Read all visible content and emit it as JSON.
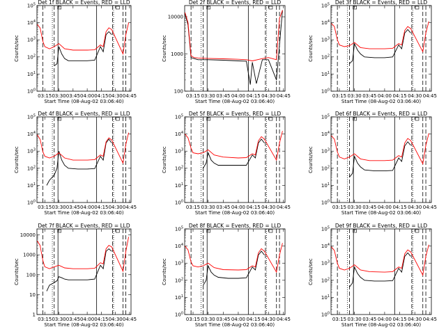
{
  "figure": {
    "date_label": "Start Time (08-Aug-02 03:06:40)",
    "ylabel": "Counts/sec",
    "x_ticks": [
      "03:15",
      "03:30",
      "03:45",
      "04:00",
      "04:15",
      "04:30",
      "04:45"
    ],
    "colors": {
      "events": "#000000",
      "lld": "#ff0000",
      "axes": "#000000"
    }
  },
  "chart_data": [
    {
      "type": "line",
      "title": "Det 1f  BLACK = Events, RED = LLD",
      "xlabel": "Start Time (08-Aug-02 03:06:40)",
      "ylabel": "Counts/sec",
      "y_scale": "log",
      "ylim": [
        1,
        100000
      ],
      "y_ticks": [
        "10^0",
        "10^1",
        "10^2",
        "10^3",
        "10^4",
        "10^5"
      ],
      "x_ticks": [
        "03:15",
        "03:30",
        "03:45",
        "04:00",
        "04:15",
        "04:30",
        "04:45"
      ],
      "series": [
        {
          "name": "Events",
          "color": "#000000",
          "x": [
            "03:25",
            "03:28",
            "03:30",
            "03:33",
            "03:36",
            "03:40",
            "03:50",
            "04:00",
            "04:08",
            "04:14",
            "04:17",
            "04:20",
            "04:23",
            "04:26"
          ],
          "y": [
            30,
            40,
            400,
            150,
            80,
            60,
            60,
            60,
            65,
            400,
            200,
            2000,
            3000,
            2000
          ]
        },
        {
          "name": "LLD",
          "color": "#ff0000",
          "x": [
            "03:07",
            "03:10",
            "03:13",
            "03:15",
            "03:20",
            "03:25",
            "03:30",
            "03:36",
            "03:45",
            "04:00",
            "04:08",
            "04:14",
            "04:17",
            "04:20",
            "04:23",
            "04:26",
            "04:38",
            "04:41",
            "04:44"
          ],
          "y": [
            8000,
            5000,
            800,
            400,
            300,
            400,
            600,
            300,
            250,
            250,
            260,
            500,
            400,
            3000,
            5000,
            4000,
            150,
            2000,
            10000
          ]
        }
      ]
    },
    {
      "type": "line",
      "title": "Det 2f  BLACK = Events, RED = LLD",
      "xlabel": "Start Time (08-Aug-02 03:06:40)",
      "ylabel": "Counts/sec",
      "y_scale": "log",
      "ylim": [
        100,
        20000
      ],
      "y_ticks": [
        "100",
        "1000",
        "10000"
      ],
      "x_ticks": [
        "03:15",
        "03:30",
        "03:45",
        "04:00",
        "04:15",
        "04:30",
        "04:45"
      ],
      "series": [
        {
          "name": "Events",
          "color": "#000000",
          "x": [
            "03:07",
            "03:10",
            "03:13",
            "03:16",
            "03:20",
            "03:30",
            "03:45",
            "04:00",
            "04:08",
            "04:12",
            "04:14",
            "04:18",
            "04:24",
            "04:30",
            "04:38",
            "04:44"
          ],
          "y": [
            12000,
            6000,
            800,
            750,
            700,
            700,
            680,
            650,
            640,
            150,
            600,
            160,
            700,
            700,
            200,
            15000
          ]
        },
        {
          "name": "LLD",
          "color": "#ff0000",
          "x": [
            "03:07",
            "03:10",
            "03:13",
            "03:16",
            "03:20",
            "03:30",
            "03:45",
            "04:00",
            "04:08",
            "04:14",
            "04:24",
            "04:30",
            "04:38",
            "04:41",
            "04:44"
          ],
          "y": [
            13000,
            7000,
            900,
            800,
            780,
            760,
            740,
            720,
            700,
            650,
            750,
            800,
            700,
            9000,
            15000
          ]
        }
      ]
    },
    {
      "type": "line",
      "title": "Det 3f  BLACK = Events, RED = LLD",
      "xlabel": "Start Time (08-Aug-02 03:06:40)",
      "ylabel": "Counts/sec",
      "y_scale": "log",
      "ylim": [
        1,
        100000
      ],
      "y_ticks": [
        "10^0",
        "10^1",
        "10^2",
        "10^3",
        "10^4",
        "10^5"
      ],
      "x_ticks": [
        "03:15",
        "03:30",
        "03:45",
        "04:00",
        "04:15",
        "04:30",
        "04:45"
      ],
      "series": [
        {
          "name": "Events",
          "color": "#000000",
          "x": [
            "03:25",
            "03:28",
            "03:30",
            "03:33",
            "03:36",
            "03:40",
            "03:50",
            "04:00",
            "04:08",
            "04:14",
            "04:17",
            "04:20",
            "04:23",
            "04:26"
          ],
          "y": [
            40,
            60,
            600,
            250,
            150,
            100,
            90,
            90,
            100,
            500,
            300,
            2500,
            4000,
            2500
          ]
        },
        {
          "name": "LLD",
          "color": "#ff0000",
          "x": [
            "03:07",
            "03:10",
            "03:13",
            "03:15",
            "03:20",
            "03:25",
            "03:30",
            "03:36",
            "03:45",
            "04:00",
            "04:08",
            "04:14",
            "04:17",
            "04:20",
            "04:23",
            "04:26",
            "04:38",
            "04:41",
            "04:44"
          ],
          "y": [
            9000,
            6000,
            1000,
            500,
            400,
            450,
            700,
            350,
            300,
            300,
            320,
            600,
            500,
            3500,
            6000,
            4500,
            200,
            2500,
            12000
          ]
        }
      ]
    },
    {
      "type": "line",
      "title": "Det 4f  BLACK = Events, RED = LLD",
      "xlabel": "Start Time (08-Aug-02 03:06:40)",
      "ylabel": "Counts/sec",
      "y_scale": "log",
      "ylim": [
        1,
        100000
      ],
      "y_ticks": [
        "10^0",
        "10^1",
        "10^2",
        "10^3",
        "10^4",
        "10^5"
      ],
      "x_ticks": [
        "03:15",
        "03:30",
        "03:45",
        "04:00",
        "04:15",
        "04:30",
        "04:45"
      ],
      "series": [
        {
          "name": "Events",
          "color": "#000000",
          "x": [
            "03:17",
            "03:20",
            "03:25",
            "03:28",
            "03:30",
            "03:33",
            "03:36",
            "03:40",
            "03:50",
            "04:00",
            "04:08",
            "04:14",
            "04:17",
            "04:20",
            "04:23",
            "04:26"
          ],
          "y": [
            10,
            20,
            40,
            100,
            1000,
            300,
            150,
            100,
            90,
            90,
            95,
            500,
            300,
            3000,
            5000,
            3000
          ]
        },
        {
          "name": "LLD",
          "color": "#ff0000",
          "x": [
            "03:07",
            "03:10",
            "03:13",
            "03:15",
            "03:20",
            "03:25",
            "03:30",
            "03:36",
            "03:45",
            "04:00",
            "04:08",
            "04:14",
            "04:17",
            "04:20",
            "04:23",
            "04:26",
            "04:38",
            "04:41",
            "04:44"
          ],
          "y": [
            9000,
            5000,
            900,
            500,
            400,
            500,
            800,
            400,
            300,
            300,
            320,
            600,
            500,
            3500,
            6000,
            4500,
            200,
            2500,
            12000
          ]
        }
      ]
    },
    {
      "type": "line",
      "title": "Det 5f  BLACK = Events, RED = LLD",
      "xlabel": "Start Time (08-Aug-02 03:06:40)",
      "ylabel": "Counts/sec",
      "y_scale": "log",
      "ylim": [
        1,
        100000
      ],
      "y_ticks": [
        "10^0",
        "10^1",
        "10^2",
        "10^3",
        "10^4",
        "10^5"
      ],
      "x_ticks": [
        "03:15",
        "03:30",
        "03:45",
        "04:00",
        "04:15",
        "04:30",
        "04:45"
      ],
      "series": [
        {
          "name": "Events",
          "color": "#000000",
          "x": [
            "03:25",
            "03:28",
            "03:30",
            "03:33",
            "03:36",
            "03:40",
            "03:50",
            "04:00",
            "04:08",
            "04:14",
            "04:17",
            "04:20",
            "04:23",
            "04:26"
          ],
          "y": [
            100,
            200,
            800,
            300,
            200,
            150,
            150,
            150,
            150,
            600,
            400,
            3000,
            5000,
            3000
          ]
        },
        {
          "name": "LLD",
          "color": "#ff0000",
          "x": [
            "03:07",
            "03:10",
            "03:13",
            "03:15",
            "03:20",
            "03:25",
            "03:30",
            "03:36",
            "03:45",
            "04:00",
            "04:08",
            "04:14",
            "04:17",
            "04:20",
            "04:23",
            "04:26",
            "04:38",
            "04:41",
            "04:44"
          ],
          "y": [
            10000,
            6000,
            1500,
            800,
            700,
            800,
            1200,
            600,
            450,
            400,
            420,
            700,
            600,
            4000,
            7000,
            5000,
            300,
            3000,
            15000
          ]
        }
      ]
    },
    {
      "type": "line",
      "title": "Det 6f  BLACK = Events, RED = LLD",
      "xlabel": "Start Time (08-Aug-02 03:06:40)",
      "ylabel": "Counts/sec",
      "y_scale": "log",
      "ylim": [
        1,
        100000
      ],
      "y_ticks": [
        "10^0",
        "10^1",
        "10^2",
        "10^3",
        "10^4",
        "10^5"
      ],
      "x_ticks": [
        "03:15",
        "03:30",
        "03:45",
        "04:00",
        "04:15",
        "04:30",
        "04:45"
      ],
      "series": [
        {
          "name": "Events",
          "color": "#000000",
          "x": [
            "03:25",
            "03:28",
            "03:30",
            "03:33",
            "03:36",
            "03:40",
            "03:50",
            "04:00",
            "04:08",
            "04:14",
            "04:17",
            "04:20",
            "04:23",
            "04:26"
          ],
          "y": [
            30,
            50,
            500,
            200,
            120,
            80,
            70,
            70,
            75,
            400,
            250,
            2000,
            3500,
            2200
          ]
        },
        {
          "name": "LLD",
          "color": "#ff0000",
          "x": [
            "03:07",
            "03:10",
            "03:13",
            "03:15",
            "03:20",
            "03:25",
            "03:30",
            "03:36",
            "03:45",
            "04:00",
            "04:08",
            "04:14",
            "04:17",
            "04:20",
            "04:23",
            "04:26",
            "04:38",
            "04:41",
            "04:44"
          ],
          "y": [
            8000,
            5000,
            900,
            450,
            350,
            450,
            700,
            350,
            280,
            280,
            300,
            550,
            450,
            3000,
            5500,
            4200,
            180,
            2200,
            11000
          ]
        }
      ]
    },
    {
      "type": "line",
      "title": "Det 7f  BLACK = Events, RED = LLD",
      "xlabel": "Start Time (08-Aug-02 03:06:40)",
      "ylabel": "Counts/sec",
      "y_scale": "log",
      "ylim": [
        1,
        20000
      ],
      "y_ticks": [
        "1",
        "10",
        "100",
        "1000",
        "10000"
      ],
      "x_ticks": [
        "03:15",
        "03:30",
        "03:45",
        "04:00",
        "04:15",
        "04:30",
        "04:45"
      ],
      "series": [
        {
          "name": "Events",
          "color": "#000000",
          "x": [
            "03:17",
            "03:20",
            "03:25",
            "03:28",
            "03:30",
            "03:33",
            "03:36",
            "03:40",
            "03:50",
            "04:00",
            "04:08",
            "04:14",
            "04:17",
            "04:20",
            "04:23",
            "04:26"
          ],
          "y": [
            15,
            30,
            40,
            50,
            80,
            70,
            60,
            55,
            55,
            55,
            60,
            300,
            200,
            1500,
            2000,
            1500
          ]
        },
        {
          "name": "LLD",
          "color": "#ff0000",
          "x": [
            "03:07",
            "03:10",
            "03:13",
            "03:15",
            "03:20",
            "03:25",
            "03:30",
            "03:36",
            "03:45",
            "04:00",
            "04:08",
            "04:14",
            "04:17",
            "04:20",
            "04:23",
            "04:26",
            "04:38",
            "04:41",
            "04:44"
          ],
          "y": [
            5000,
            3000,
            500,
            250,
            200,
            250,
            300,
            220,
            200,
            200,
            210,
            400,
            350,
            2000,
            3000,
            2500,
            150,
            1500,
            8000
          ]
        }
      ]
    },
    {
      "type": "line",
      "title": "Det 8f  BLACK = Events, RED = LLD",
      "xlabel": "Start Time (08-Aug-02 03:06:40)",
      "ylabel": "Counts/sec",
      "y_scale": "log",
      "ylim": [
        1,
        100000
      ],
      "y_ticks": [
        "10^0",
        "10^1",
        "10^2",
        "10^3",
        "10^4",
        "10^5"
      ],
      "x_ticks": [
        "03:15",
        "03:30",
        "03:45",
        "04:00",
        "04:15",
        "04:30",
        "04:45"
      ],
      "series": [
        {
          "name": "Events",
          "color": "#000000",
          "x": [
            "03:25",
            "03:28",
            "03:30",
            "03:33",
            "03:36",
            "03:40",
            "03:50",
            "04:00",
            "04:08",
            "04:14",
            "04:17",
            "04:20",
            "04:23",
            "04:26"
          ],
          "y": [
            50,
            100,
            700,
            300,
            200,
            150,
            130,
            130,
            140,
            600,
            400,
            3000,
            5000,
            3000
          ]
        },
        {
          "name": "LLD",
          "color": "#ff0000",
          "x": [
            "03:07",
            "03:10",
            "03:13",
            "03:15",
            "03:20",
            "03:25",
            "03:30",
            "03:36",
            "03:45",
            "04:00",
            "04:08",
            "04:14",
            "04:17",
            "04:20",
            "04:23",
            "04:26",
            "04:38",
            "04:41",
            "04:44"
          ],
          "y": [
            10000,
            6000,
            1200,
            700,
            600,
            700,
            1000,
            550,
            420,
            400,
            420,
            700,
            600,
            4000,
            7000,
            5000,
            300,
            3000,
            15000
          ]
        }
      ]
    },
    {
      "type": "line",
      "title": "Det 9f  BLACK = Events, RED = LLD",
      "xlabel": "Start Time (08-Aug-02 03:06:40)",
      "ylabel": "Counts/sec",
      "y_scale": "log",
      "ylim": [
        1,
        100000
      ],
      "y_ticks": [
        "10^0",
        "10^1",
        "10^2",
        "10^3",
        "10^4",
        "10^5"
      ],
      "x_ticks": [
        "03:15",
        "03:30",
        "03:45",
        "04:00",
        "04:15",
        "04:30",
        "04:45"
      ],
      "series": [
        {
          "name": "Events",
          "color": "#000000",
          "x": [
            "03:25",
            "03:28",
            "03:30",
            "03:33",
            "03:36",
            "03:40",
            "03:50",
            "04:00",
            "04:08",
            "04:14",
            "04:17",
            "04:20",
            "04:23",
            "04:26"
          ],
          "y": [
            40,
            70,
            600,
            250,
            150,
            100,
            90,
            90,
            95,
            500,
            300,
            2500,
            4000,
            2500
          ]
        },
        {
          "name": "LLD",
          "color": "#ff0000",
          "x": [
            "03:07",
            "03:10",
            "03:13",
            "03:15",
            "03:20",
            "03:25",
            "03:30",
            "03:36",
            "03:45",
            "04:00",
            "04:08",
            "04:14",
            "04:17",
            "04:20",
            "04:23",
            "04:26",
            "04:38",
            "04:41",
            "04:44"
          ],
          "y": [
            9000,
            5500,
            1000,
            500,
            400,
            500,
            800,
            400,
            320,
            300,
            320,
            600,
            500,
            3500,
            6000,
            4500,
            200,
            2500,
            12000
          ]
        }
      ]
    }
  ]
}
